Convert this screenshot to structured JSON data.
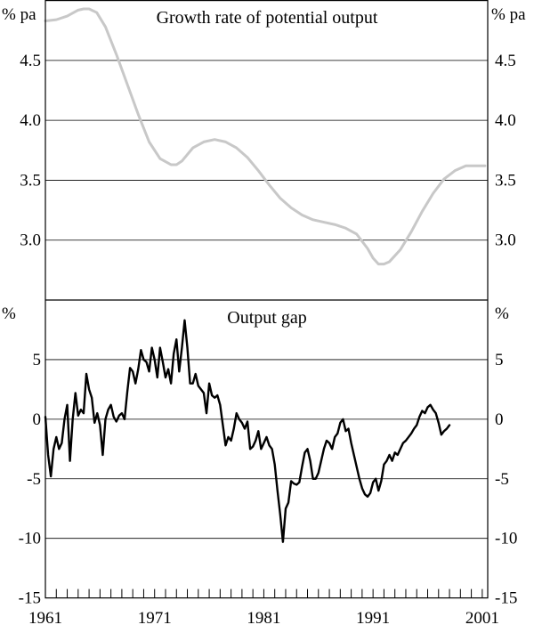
{
  "chart_data": [
    {
      "type": "line",
      "title": "Growth rate of potential output",
      "unit_left": "% pa",
      "unit_right": "% pa",
      "ylim": [
        2.5,
        5.0
      ],
      "yticks": [
        "4.5",
        "4.0",
        "3.5",
        "3.0"
      ],
      "ytick_values": [
        4.5,
        4.0,
        3.5,
        3.0
      ],
      "grid": true,
      "line_color": "#c8c8c8",
      "series": [
        {
          "x": [
            1961.0,
            1962.0,
            1963.0,
            1964.0,
            1964.5,
            1965.0,
            1965.7,
            1966.5,
            1967.5,
            1968.5,
            1969.5,
            1970.5,
            1971.5,
            1972.5,
            1973.0,
            1973.5,
            1974.5,
            1975.5,
            1976.5,
            1977.5,
            1978.5,
            1979.5,
            1980.5,
            1981.5,
            1982.5,
            1983.5,
            1984.5,
            1985.5,
            1986.5,
            1987.5,
            1988.5,
            1989.5,
            1990.5,
            1991.0,
            1991.5,
            1992.0,
            1992.5,
            1993.5,
            1994.5,
            1995.5,
            1996.5,
            1997.5,
            1998.5,
            1999.5,
            2000.5,
            2001.25
          ],
          "values": [
            4.83,
            4.84,
            4.87,
            4.92,
            4.93,
            4.93,
            4.9,
            4.78,
            4.55,
            4.3,
            4.05,
            3.82,
            3.68,
            3.63,
            3.63,
            3.66,
            3.77,
            3.82,
            3.84,
            3.82,
            3.77,
            3.69,
            3.58,
            3.46,
            3.35,
            3.27,
            3.21,
            3.17,
            3.15,
            3.13,
            3.1,
            3.05,
            2.93,
            2.85,
            2.8,
            2.8,
            2.82,
            2.92,
            3.07,
            3.24,
            3.39,
            3.51,
            3.58,
            3.62,
            3.62,
            3.62
          ]
        }
      ]
    },
    {
      "type": "line",
      "title": "Output gap",
      "unit_left": "%",
      "unit_right": "%",
      "ylim": [
        -15,
        10
      ],
      "yticks": [
        "5",
        "0",
        "-5",
        "-10",
        "-15"
      ],
      "ytick_values": [
        5,
        0,
        -5,
        -10,
        -15
      ],
      "grid": true,
      "line_color": "#000000",
      "x_start": 1961.0,
      "x_step": 0.25,
      "xlim": [
        1961,
        2001.5
      ],
      "xticks": [
        "1961",
        "1971",
        "1981",
        "1991",
        "2001"
      ],
      "xtick_values": [
        1961,
        1971,
        1981,
        1991,
        2001
      ],
      "series": [
        {
          "values": [
            0.2,
            -3.0,
            -4.8,
            -2.5,
            -1.5,
            -2.5,
            -2.0,
            0.0,
            1.2,
            -3.5,
            0.0,
            2.2,
            0.3,
            0.8,
            0.5,
            3.8,
            2.5,
            1.8,
            -0.3,
            0.5,
            -0.5,
            -3.0,
            0.0,
            0.8,
            1.2,
            0.2,
            -0.2,
            0.3,
            0.5,
            0.0,
            2.3,
            4.3,
            4.0,
            3.0,
            4.2,
            5.8,
            5.0,
            4.8,
            4.0,
            6.0,
            5.0,
            3.5,
            6.0,
            4.8,
            3.5,
            4.2,
            3.0,
            5.5,
            6.7,
            4.0,
            6.0,
            8.3,
            6.0,
            3.0,
            3.0,
            3.8,
            2.8,
            2.5,
            2.2,
            0.5,
            3.0,
            2.0,
            1.8,
            2.0,
            1.2,
            -0.5,
            -2.2,
            -1.5,
            -1.8,
            -0.8,
            0.5,
            0.0,
            -0.3,
            -0.8,
            -0.2,
            -2.5,
            -2.3,
            -1.8,
            -1.0,
            -2.5,
            -2.0,
            -1.5,
            -2.2,
            -2.5,
            -3.8,
            -6.0,
            -8.0,
            -10.3,
            -7.5,
            -7.0,
            -5.2,
            -5.4,
            -5.5,
            -5.3,
            -4.0,
            -2.8,
            -2.5,
            -3.5,
            -5.0,
            -5.0,
            -4.5,
            -3.5,
            -2.5,
            -1.8,
            -2.0,
            -2.5,
            -1.5,
            -1.2,
            -0.3,
            0.0,
            -1.0,
            -0.8,
            -2.0,
            -3.0,
            -4.0,
            -5.0,
            -5.8,
            -6.3,
            -6.5,
            -6.2,
            -5.3,
            -5.0,
            -6.0,
            -5.2,
            -3.8,
            -3.5,
            -3.0,
            -3.5,
            -2.8,
            -3.0,
            -2.5,
            -2.0,
            -1.8,
            -1.5,
            -1.2,
            -0.8,
            -0.5,
            0.2,
            0.7,
            0.5,
            1.0,
            1.2,
            0.8,
            0.5,
            -0.3,
            -1.3,
            -1.0,
            -0.8,
            -0.5
          ]
        }
      ]
    }
  ]
}
